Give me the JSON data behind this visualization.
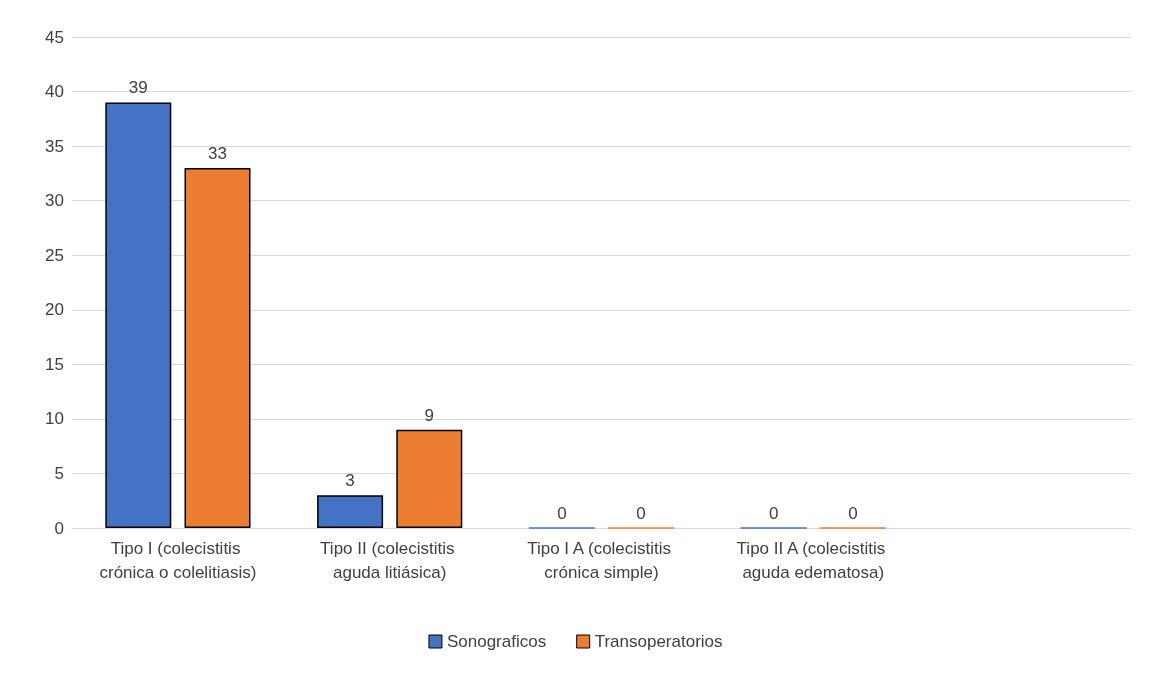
{
  "chart_data": {
    "type": "bar",
    "categories": [
      "Tipo I (colecistitis crónica o colelitiasis)",
      "Tipo II (colecistitis aguda litiásica)",
      "Tipo I A (colecistitis crónica simple)",
      "Tipo II A (colecistitis aguda edematosa)",
      null
    ],
    "series": [
      {
        "name": "Sonograficos",
        "color": "#4472c4",
        "values": [
          39,
          3,
          0,
          0,
          null
        ]
      },
      {
        "name": "Transoperatorios",
        "color": "#ed7d31",
        "values": [
          33,
          9,
          0,
          0,
          null
        ]
      }
    ],
    "ylim": [
      0,
      45
    ],
    "yticks": [
      0,
      5,
      10,
      15,
      20,
      25,
      30,
      35,
      40,
      45
    ],
    "grid": "y",
    "legend": "bottom",
    "data_labels": true
  }
}
